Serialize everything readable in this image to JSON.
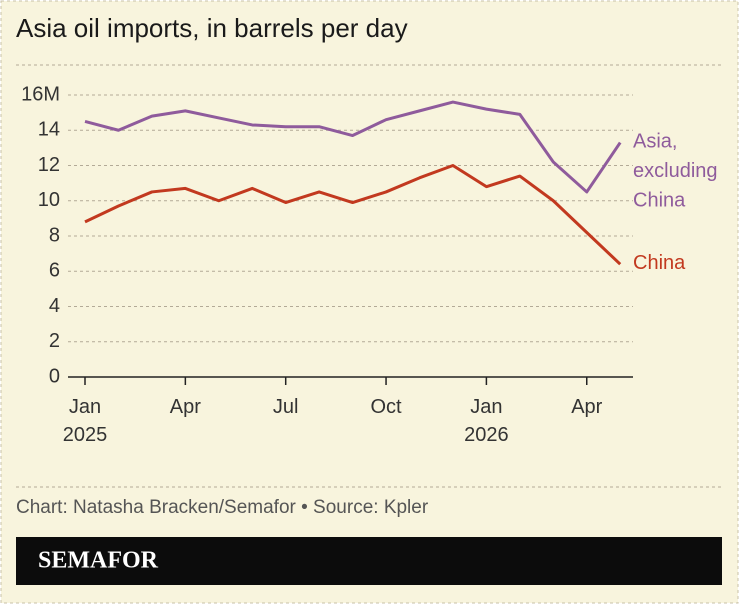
{
  "chart_data": {
    "type": "line",
    "title": "Asia oil imports, in barrels per day",
    "categories": [
      "Jan 2025",
      null,
      null,
      "Apr",
      null,
      null,
      "Jul",
      null,
      null,
      "Oct",
      null,
      null,
      "Jan 2026",
      null,
      null,
      "Apr",
      null
    ],
    "series": [
      {
        "name": "Asia, excluding China",
        "color": "#8f5b9c",
        "values": [
          14.5,
          14.0,
          14.8,
          15.1,
          14.7,
          14.3,
          14.2,
          14.2,
          13.7,
          14.6,
          15.1,
          15.6,
          15.2,
          14.9,
          12.2,
          10.5,
          13.3
        ]
      },
      {
        "name": "China",
        "color": "#c2391f",
        "values": [
          8.8,
          9.7,
          10.5,
          10.7,
          10.0,
          10.7,
          9.9,
          10.5,
          9.9,
          10.5,
          11.3,
          12.0,
          10.8,
          11.4,
          10.0,
          8.2,
          6.4
        ]
      }
    ],
    "ylim": [
      0,
      16
    ],
    "yticks": [
      0,
      2,
      4,
      6,
      8,
      10,
      12,
      14,
      {
        "value": 16,
        "label": "16M"
      }
    ],
    "grid": true
  },
  "footer": {
    "credit": "Chart: Natasha Bracken/Semafor • Source: Kpler",
    "logo": "SEMAFOR"
  }
}
